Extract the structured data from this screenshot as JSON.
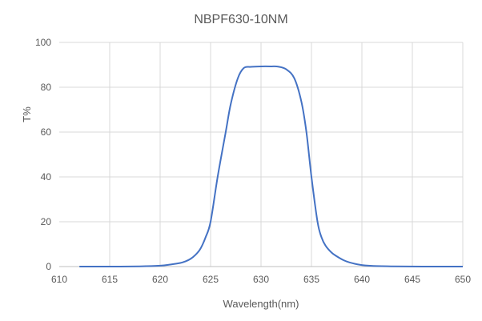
{
  "chart_data": {
    "type": "line",
    "title": "NBPF630-10NM",
    "xlabel": "Wavelength(nm)",
    "ylabel": "T%",
    "xlim": [
      610,
      650
    ],
    "ylim": [
      0,
      100
    ],
    "xticks": [
      610,
      615,
      620,
      625,
      630,
      635,
      640,
      645,
      650
    ],
    "yticks": [
      0,
      20,
      40,
      60,
      80,
      100
    ],
    "grid": true,
    "line_color": "#4472C4",
    "series": [
      {
        "x": [
          612,
          615,
          618,
          620,
          621,
          622,
          622.5,
          623,
          623.5,
          624,
          624.5,
          625,
          625.7,
          626.5,
          627,
          627.7,
          628.3,
          629,
          630,
          631,
          631.7,
          632.5,
          633.3,
          634,
          634.5,
          635,
          635.6,
          636,
          636.4,
          637,
          637.5,
          638.2,
          638.8,
          639.8,
          641,
          643,
          646,
          650
        ],
        "y": [
          0,
          0,
          0.1,
          0.4,
          0.9,
          1.6,
          2.3,
          3.4,
          5.2,
          8,
          13,
          20,
          40,
          60,
          72.5,
          84,
          88.6,
          89.1,
          89.3,
          89.3,
          89.2,
          88,
          84,
          73.6,
          60,
          40,
          20,
          13,
          9.3,
          6.2,
          4.6,
          2.8,
          1.8,
          0.8,
          0.3,
          0.1,
          0,
          0
        ]
      }
    ]
  }
}
